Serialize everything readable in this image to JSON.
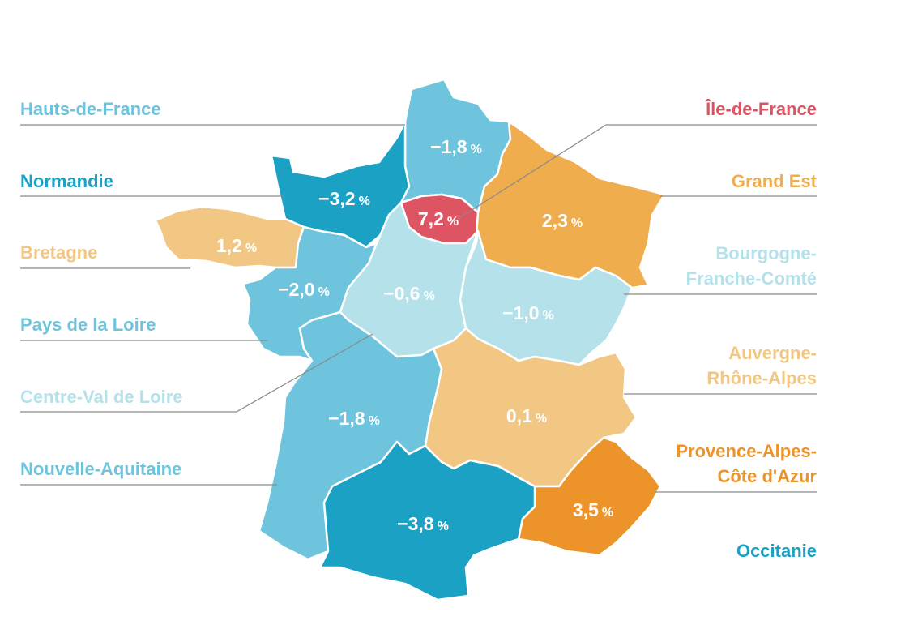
{
  "colors": {
    "blue_light": "#b4e1ea",
    "blue_mid": "#6ec4dc",
    "blue_dark": "#1ba1c4",
    "orange_light": "#f2c784",
    "orange_mid": "#efad4d",
    "orange_dark": "#ec942a",
    "red": "#dd5563"
  },
  "unit": "%",
  "regions": [
    {
      "id": "hauts-de-france",
      "name": "Hauts-de-France",
      "name_lines": [
        "Hauts-de-France"
      ],
      "value": "−1,8",
      "color": "#6ec4dc",
      "label_side": "left"
    },
    {
      "id": "normandie",
      "name": "Normandie",
      "name_lines": [
        "Normandie"
      ],
      "value": "−3,2",
      "color": "#1ba1c4",
      "label_side": "left"
    },
    {
      "id": "bretagne",
      "name": "Bretagne",
      "name_lines": [
        "Bretagne"
      ],
      "value": "1,2",
      "color": "#f2c784",
      "label_side": "left"
    },
    {
      "id": "pays-de-la-loire",
      "name": "Pays de la Loire",
      "name_lines": [
        "Pays de la Loire"
      ],
      "value": "−2,0",
      "color": "#6ec4dc",
      "label_side": "left"
    },
    {
      "id": "centre-val-de-loire",
      "name": "Centre-Val de Loire",
      "name_lines": [
        "Centre-Val de Loire"
      ],
      "value": "−0,6",
      "color": "#b4e1ea",
      "label_side": "left"
    },
    {
      "id": "nouvelle-aquitaine",
      "name": "Nouvelle-Aquitaine",
      "name_lines": [
        "Nouvelle-Aquitaine"
      ],
      "value": "−1,8",
      "color": "#6ec4dc",
      "label_side": "left"
    },
    {
      "id": "ile-de-france",
      "name": "Île-de-France",
      "name_lines": [
        "Île-de-France"
      ],
      "value": "7,2",
      "color": "#dd5563",
      "label_side": "right"
    },
    {
      "id": "grand-est",
      "name": "Grand Est",
      "name_lines": [
        "Grand Est"
      ],
      "value": "2,3",
      "color": "#efad4d",
      "label_side": "right"
    },
    {
      "id": "bourgogne-franche-comte",
      "name": "Bourgogne-Franche-Comté",
      "name_lines": [
        "Bourgogne-",
        "Franche-Comté"
      ],
      "value": "−1,0",
      "color": "#b4e1ea",
      "label_side": "right"
    },
    {
      "id": "auvergne-rhone-alpes",
      "name": "Auvergne-Rhône-Alpes",
      "name_lines": [
        "Auvergne-",
        "Rhône-Alpes"
      ],
      "value": "0,1",
      "color": "#f2c784",
      "label_side": "right"
    },
    {
      "id": "provence-alpes-cote-dazur",
      "name": "Provence-Alpes-Côte d'Azur",
      "name_lines": [
        "Provence-Alpes-",
        "Côte d'Azur"
      ],
      "value": "3,5",
      "color": "#ec942a",
      "label_side": "right"
    },
    {
      "id": "occitanie",
      "name": "Occitanie",
      "name_lines": [
        "Occitanie"
      ],
      "value": "−3,8",
      "color": "#1ba1c4",
      "label_side": "right"
    }
  ]
}
